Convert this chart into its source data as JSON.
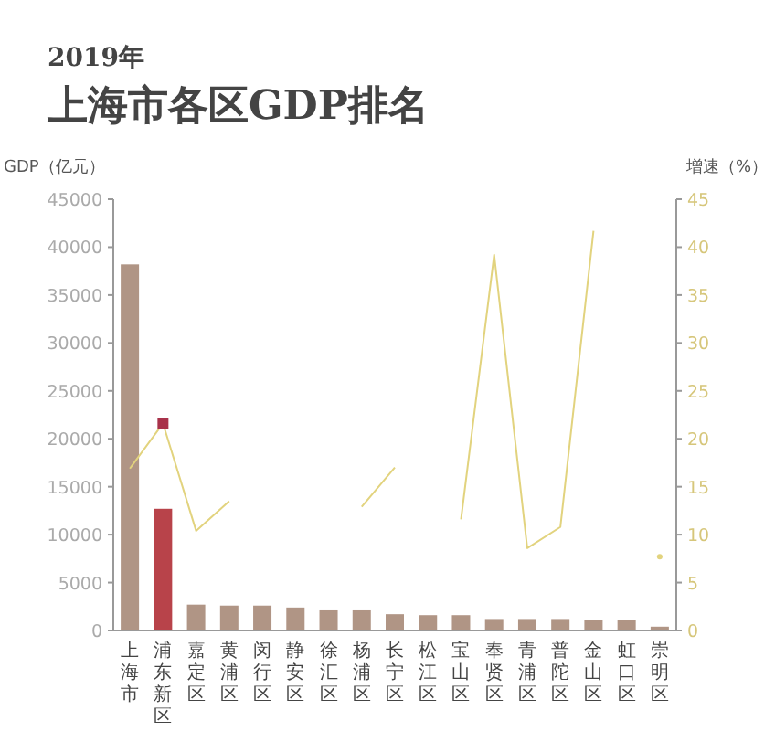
{
  "chart_data": {
    "type": "bar",
    "title": "2019年",
    "subtitle": "上海市各区GDP排名",
    "ylabel": "GDP（亿元）",
    "y2label": "增速（%）",
    "categories": [
      "上海市",
      "浦东新区",
      "嘉定区",
      "黄浦区",
      "闵行区",
      "静安区",
      "徐汇区",
      "杨浦区",
      "长宁区",
      "松江区",
      "宝山区",
      "奉贤区",
      "青浦区",
      "普陀区",
      "金山区",
      "虹口区",
      "崇明区"
    ],
    "ylim": [
      0,
      45000
    ],
    "yticks": [
      0,
      5000,
      10000,
      15000,
      20000,
      25000,
      30000,
      35000,
      40000,
      45000
    ],
    "y2lim": [
      0,
      45
    ],
    "y2ticks": [
      0,
      5,
      10,
      15,
      20,
      25,
      30,
      35,
      40,
      45
    ],
    "grid": false,
    "series": [
      {
        "colors": [
          "#b09585",
          "#b8434a",
          "#b09585",
          "#b09585",
          "#b09585",
          "#b09585",
          "#b09585",
          "#b09585",
          "#b09585",
          "#b09585",
          "#b09585",
          "#b09585",
          "#b09585",
          "#b09585",
          "#b09585",
          "#b09585",
          "#b09585"
        ],
        "values": [
          38200,
          12700,
          2700,
          2600,
          2600,
          2400,
          2100,
          2100,
          1700,
          1600,
          1600,
          1200,
          1200,
          1200,
          1100,
          1100,
          400
        ]
      },
      {
        "type": "line",
        "axis": "y2",
        "color": "#e2d37e",
        "marker": "none",
        "values": [
          16.9,
          21.6,
          10.4,
          13.5,
          null,
          null,
          null,
          12.9,
          17,
          null,
          11.6,
          39.2,
          8.6,
          10.8,
          41.7,
          null,
          7.7
        ]
      },
      {
        "type": "scatter",
        "axis": "y2",
        "color": "#a8324a",
        "marker": "square",
        "x": [
          "浦东新区"
        ],
        "values": [
          21.6
        ]
      }
    ]
  }
}
